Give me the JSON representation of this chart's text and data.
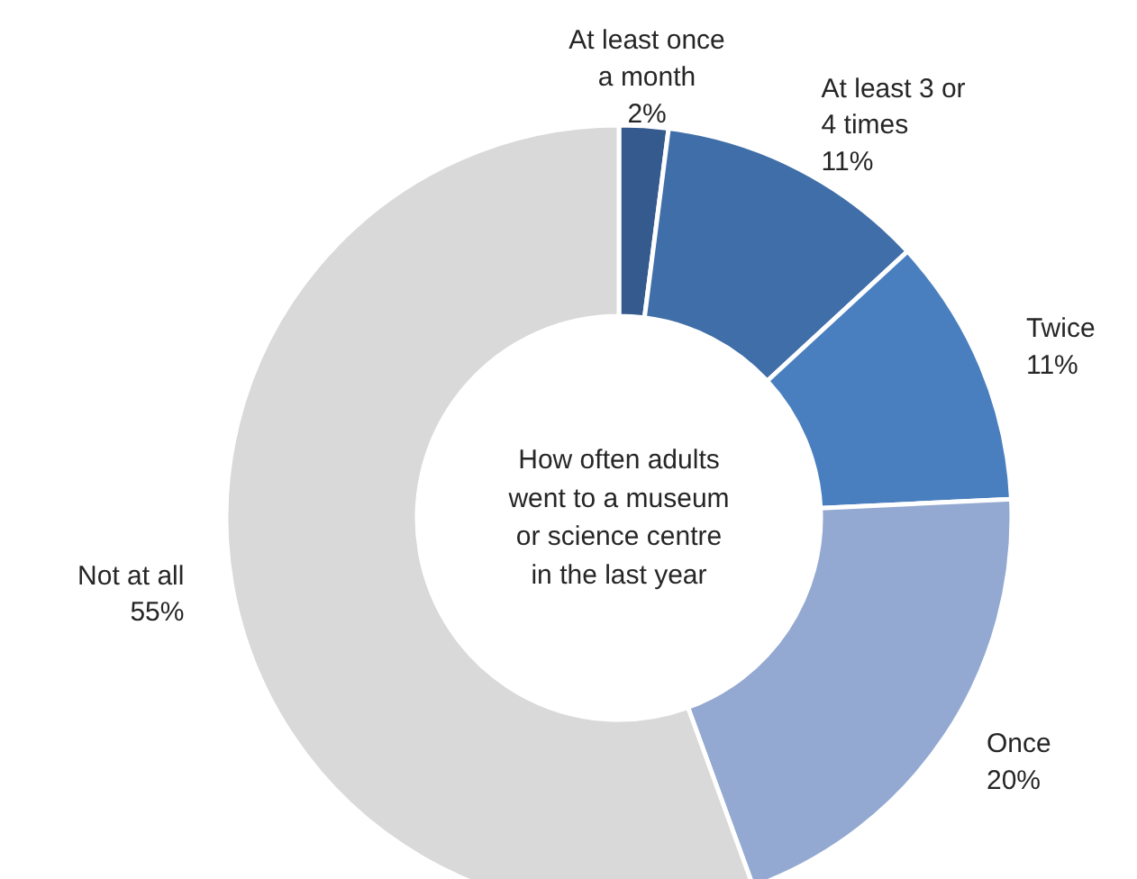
{
  "chart_data": {
    "type": "donut",
    "title": "How often adults went to a museum or science centre in the last year",
    "categories": [
      "At least once a month",
      "At least 3 or 4 times",
      "Twice",
      "Once",
      "Not at all"
    ],
    "values": [
      2,
      11,
      11,
      20,
      55
    ],
    "value_labels": [
      "2%",
      "11%",
      "11%",
      "20%",
      "55%"
    ],
    "colors": [
      "#355a8e",
      "#3f6ea8",
      "#4a7fbf",
      "#93a9d1",
      "#d9d9d9"
    ],
    "legend": false
  }
}
